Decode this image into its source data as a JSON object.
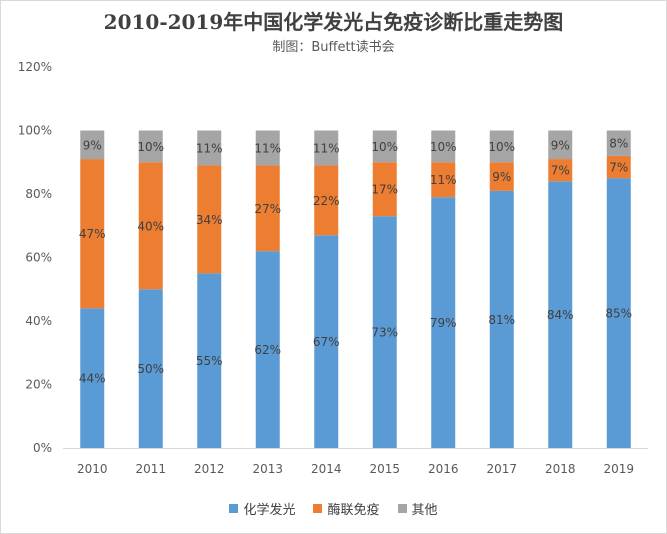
{
  "header": {
    "title": "2010-2019年中国化学发光占免疫诊断比重走势图",
    "subtitle": "制图：Buffett读书会"
  },
  "chart_data": {
    "type": "bar",
    "stacked": true,
    "title": "2010-2019年中国化学发光占免疫诊断比重走势图",
    "subtitle": "制图：Buffett读书会",
    "categories": [
      "2010",
      "2011",
      "2012",
      "2013",
      "2014",
      "2015",
      "2016",
      "2017",
      "2018",
      "2019"
    ],
    "series": [
      {
        "name": "化学发光",
        "values": [
          44,
          50,
          55,
          62,
          67,
          73,
          79,
          81,
          84,
          85
        ],
        "color": "#5b9bd5"
      },
      {
        "name": "酶联免疫",
        "values": [
          47,
          40,
          34,
          27,
          22,
          17,
          11,
          9,
          7,
          7
        ],
        "color": "#ed7d31"
      },
      {
        "name": "其他",
        "values": [
          9,
          10,
          11,
          11,
          11,
          10,
          10,
          10,
          9,
          8
        ],
        "color": "#a5a5a5"
      }
    ],
    "ylim": [
      0,
      120
    ],
    "yticks": [
      "0%",
      "20%",
      "40%",
      "60%",
      "80%",
      "100%",
      "120%"
    ],
    "ytick_values": [
      0,
      20,
      40,
      60,
      80,
      100,
      120
    ],
    "value_suffix": "%",
    "grid": false,
    "legend_position": "bottom"
  }
}
